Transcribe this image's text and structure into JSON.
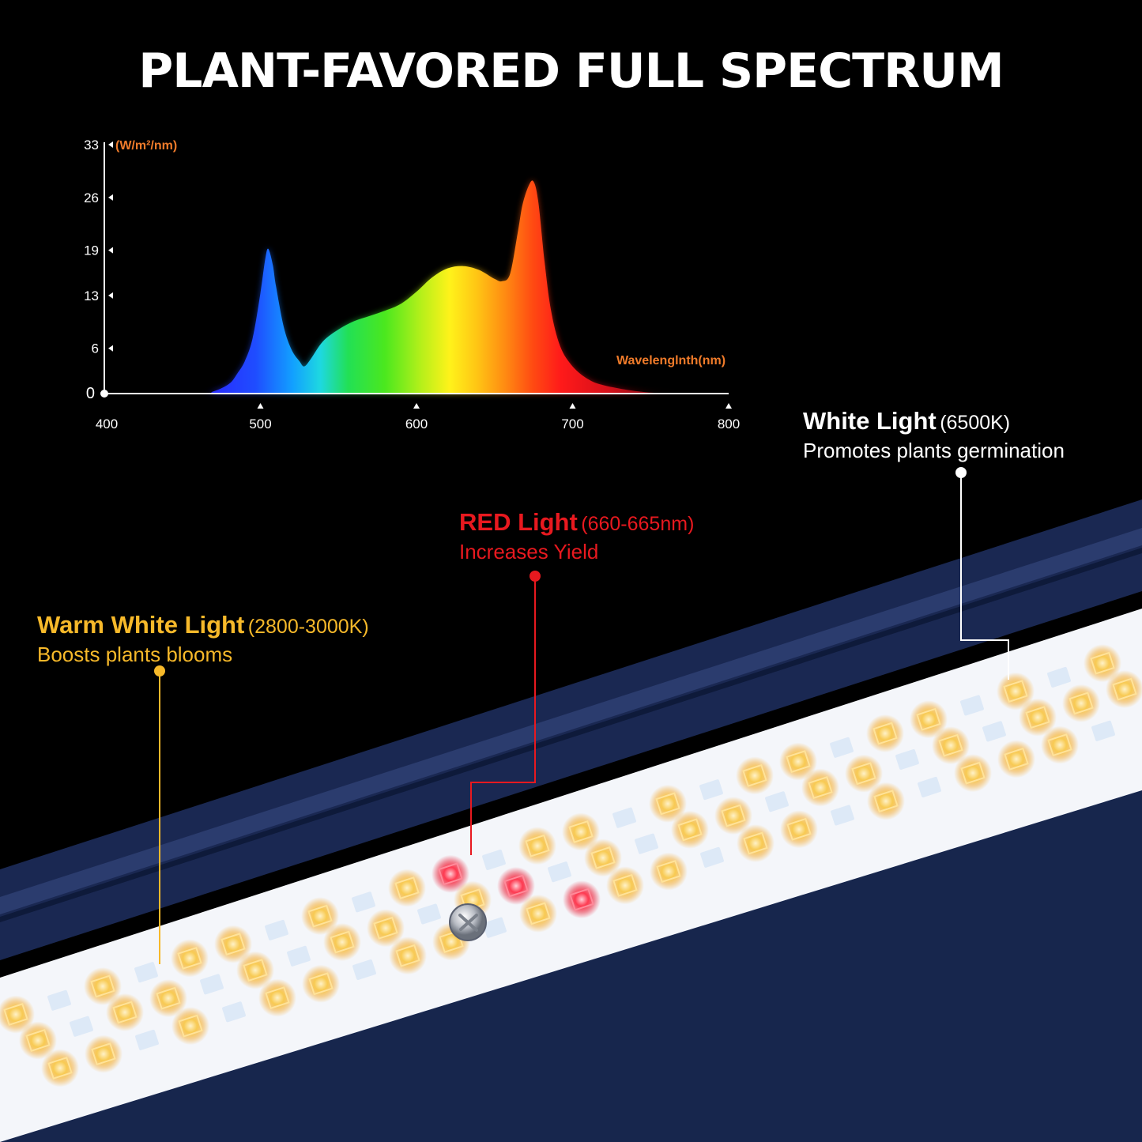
{
  "headline": "PLANT-FAVORED FULL SPECTRUM",
  "chart_data": {
    "type": "area",
    "title": "",
    "xlabel": "Wavelenglnth(nm)",
    "ylabel": "(W/m²/nm)",
    "xlim": [
      400,
      800
    ],
    "ylim": [
      0,
      33
    ],
    "x_ticks": [
      "400",
      "500",
      "600",
      "700",
      "800"
    ],
    "y_ticks": [
      "0",
      "6",
      "13",
      "19",
      "26",
      "33"
    ],
    "fill": "rainbow gradient by wavelength",
    "series": [
      {
        "x": [
          400,
          460,
          470,
          480,
          485,
          490,
          495,
          500,
          503,
          505,
          508,
          510,
          515,
          520,
          525,
          528,
          532,
          540,
          550,
          560,
          570,
          580,
          590,
          600,
          610,
          620,
          630,
          640,
          650,
          655,
          660,
          665,
          668,
          672,
          675,
          678,
          682,
          686,
          692,
          700,
          710,
          720,
          740,
          760,
          800
        ],
        "y": [
          0,
          0,
          0.3,
          1.3,
          2.6,
          4.3,
          7.3,
          13.3,
          17.7,
          19.2,
          17.0,
          14.2,
          8.8,
          5.8,
          4.3,
          3.6,
          4.5,
          6.9,
          8.5,
          9.6,
          10.3,
          11.0,
          11.9,
          13.5,
          15.4,
          16.6,
          16.9,
          16.4,
          15.2,
          14.9,
          15.9,
          21.5,
          25.1,
          27.6,
          28.1,
          25.5,
          17.6,
          11.2,
          6.3,
          3.6,
          1.9,
          1.1,
          0.35,
          0.05,
          0
        ]
      }
    ],
    "legend": "none",
    "grid": false
  },
  "callouts": {
    "warm": {
      "title": "Warm White Light",
      "spec": "(2800-3000K)",
      "desc": "Boosts plants blooms",
      "color": "#f7b92a"
    },
    "red": {
      "title": "RED Light",
      "spec": "(660-665nm)",
      "desc": "Increases Yield",
      "color": "#e8191f"
    },
    "white": {
      "title": "White Light",
      "spec": "(6500K)",
      "desc": "Promotes plants germination",
      "color": "#ffffff"
    }
  },
  "colors": {
    "background": "#000000",
    "axis_label": "#f07b2a",
    "housing": "#1b2a55",
    "warm_led": "#f5a623",
    "red_led": "#e8132a",
    "white_led": "#e8f1fb"
  }
}
